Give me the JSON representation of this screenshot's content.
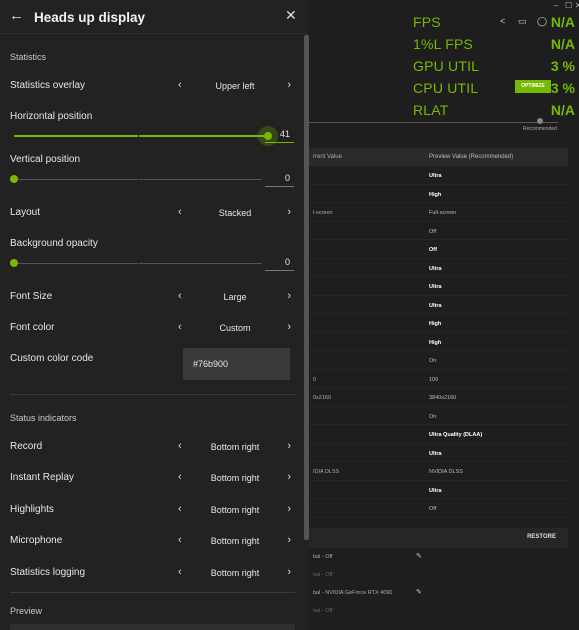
{
  "panel": {
    "title": "Heads up display",
    "sections": {
      "statistics": "Statistics",
      "status": "Status indicators",
      "preview": "Preview"
    },
    "statistics_overlay": {
      "label": "Statistics overlay",
      "value": "Upper left"
    },
    "horizontal_position": {
      "label": "Horizontal position",
      "value": "41",
      "fraction": 0.41
    },
    "vertical_position": {
      "label": "Vertical position",
      "value": "0",
      "fraction": 0
    },
    "layout": {
      "label": "Layout",
      "value": "Stacked"
    },
    "background_opacity": {
      "label": "Background opacity",
      "value": "0",
      "fraction": 0
    },
    "font_size": {
      "label": "Font Size",
      "value": "Large"
    },
    "font_color": {
      "label": "Font color",
      "value": "Custom"
    },
    "custom_color": {
      "label": "Custom color code",
      "value": "#76b900"
    },
    "status_items": [
      {
        "label": "Record",
        "value": "Bottom right"
      },
      {
        "label": "Instant Replay",
        "value": "Bottom right"
      },
      {
        "label": "Highlights",
        "value": "Bottom right"
      },
      {
        "label": "Microphone",
        "value": "Bottom right"
      },
      {
        "label": "Statistics logging",
        "value": "Bottom right"
      }
    ]
  },
  "overlay": {
    "rows": [
      {
        "label": "FPS",
        "value": "N/A"
      },
      {
        "label": "1%L FPS",
        "value": "N/A"
      },
      {
        "label": "GPU UTIL",
        "value": "3 %"
      },
      {
        "label": "CPU UTIL",
        "value": "3 %"
      },
      {
        "label": "RLAT",
        "value": "N/A"
      }
    ],
    "optimize_label": "OPTIMIZE",
    "recommended_label": "Recommended"
  },
  "table": {
    "headers": [
      "rrent Value",
      "Preview Value (Recommended)"
    ],
    "rows": [
      {
        "current": "",
        "preview": "Ultra",
        "bold": true
      },
      {
        "current": "",
        "preview": "High",
        "bold": true
      },
      {
        "current": "l-screen",
        "preview": "Full-screen",
        "bold": false
      },
      {
        "current": "",
        "preview": "Off",
        "bold": false
      },
      {
        "current": "",
        "preview": "Off",
        "bold": true
      },
      {
        "current": "",
        "preview": "Ultra",
        "bold": true
      },
      {
        "current": "",
        "preview": "Ultra",
        "bold": true
      },
      {
        "current": "",
        "preview": "Ultra",
        "bold": true
      },
      {
        "current": "",
        "preview": "High",
        "bold": true
      },
      {
        "current": "",
        "preview": "High",
        "bold": true
      },
      {
        "current": "",
        "preview": "On",
        "bold": false
      },
      {
        "current": "0",
        "preview": "100",
        "bold": false
      },
      {
        "current": "0x2160",
        "preview": "3840x2160",
        "bold": false
      },
      {
        "current": "",
        "preview": "On",
        "bold": false
      },
      {
        "current": "",
        "preview": "Ultra Quality (DLAA)",
        "bold": true
      },
      {
        "current": "",
        "preview": "Ultra",
        "bold": true
      },
      {
        "current": "IDIA DLSS",
        "preview": "NVIDIA DLSS",
        "bold": false
      },
      {
        "current": "",
        "preview": "Ultra",
        "bold": true
      },
      {
        "current": "",
        "preview": "Off",
        "bold": false
      }
    ]
  },
  "restore_label": "RESTORE",
  "global_rows": [
    {
      "text": "bal - Off",
      "dim": false,
      "edit": true
    },
    {
      "text": "bal - Off",
      "dim": true,
      "edit": false
    },
    {
      "text": "bal - NVIDIA GeForce RTX 4090",
      "dim": false,
      "edit": true
    },
    {
      "text": "bal - Off",
      "dim": true,
      "edit": false
    }
  ],
  "colors": {
    "accent": "#76b900",
    "panel": "#222222",
    "background": "#1e1e1e"
  }
}
